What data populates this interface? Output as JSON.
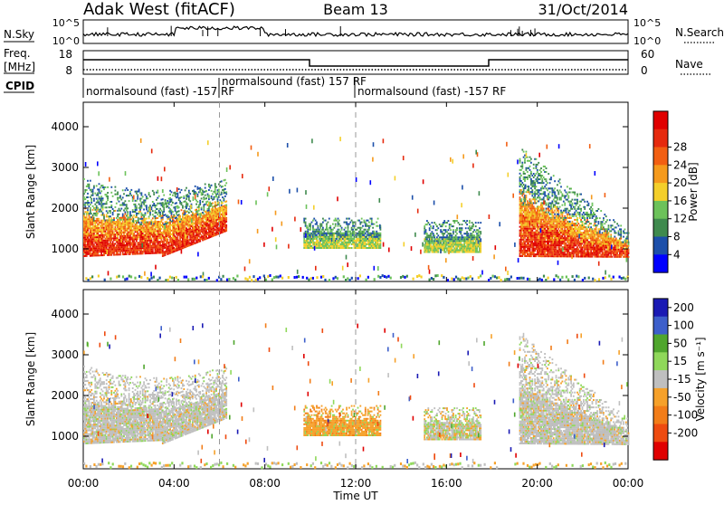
{
  "header": {
    "station": "Adak West (fitACF)",
    "beam": "Beam 13",
    "date": "31/Oct/2014"
  },
  "left_labels": {
    "nsky": "N.Sky",
    "freq_line1": "Freq.",
    "freq_line2": "[MHz]",
    "cpid": "CPID"
  },
  "right_labels": {
    "nsearch": "N.Search",
    "nave": "Nave"
  },
  "noise_ticks": {
    "top": "10^5",
    "bottom": "10^0"
  },
  "freq_ticks": {
    "top": "18",
    "bottom": "8"
  },
  "nave_ticks": {
    "top": "60",
    "bottom": "0"
  },
  "cpid_segments": [
    {
      "label": "normalsound (fast) -157 RF",
      "start": "00:00",
      "end": "06:00"
    },
    {
      "label": "normalsound (fast) 157 RF",
      "start": "06:00",
      "end": "12:00"
    },
    {
      "label": "normalsound (fast) -157 RF",
      "start": "12:00",
      "end": "24:00"
    }
  ],
  "colors": {
    "power_scale": [
      "#0000ff",
      "#1c4faa",
      "#3f8a4e",
      "#6cc25a",
      "#f4cf2a",
      "#f59a1c",
      "#f25f12",
      "#e62a0e",
      "#e00000"
    ],
    "velocity_scale": [
      "#1a1ab4",
      "#3d5fcb",
      "#4fa62d",
      "#8fd85a",
      "#bfbfbf",
      "#f6a12a",
      "#f27d19",
      "#ee4b10",
      "#e00000"
    ]
  },
  "chart_data": [
    {
      "type": "heatmap",
      "title": "Power",
      "xlabel": "",
      "ylabel": "Slant Range [km]",
      "x_ticks": [
        "00:00",
        "04:00",
        "08:00",
        "12:00",
        "16:00",
        "20:00",
        "00:00"
      ],
      "y_ticks": [
        "1000",
        "2000",
        "3000",
        "4000"
      ],
      "ylim": [
        200,
        4600
      ],
      "colorbar_label": "Power [dB]",
      "colorbar_ticks": [
        "4",
        "8",
        "12",
        "16",
        "20",
        "24",
        "28"
      ],
      "colorbar_range": [
        0,
        30
      ],
      "echo_regions": [
        {
          "name": "morning",
          "t_start": 0.0,
          "t_end": 6.3,
          "r_min": 800,
          "r_max": 2700,
          "level": "high"
        },
        {
          "name": "mid1",
          "t_start": 9.7,
          "t_end": 13.1,
          "r_min": 1000,
          "r_max": 1750,
          "level": "medium"
        },
        {
          "name": "mid2",
          "t_start": 15.0,
          "t_end": 17.5,
          "r_min": 900,
          "r_max": 1700,
          "level": "medium"
        },
        {
          "name": "evening",
          "t_start": 19.2,
          "t_end": 24.0,
          "r_min": 800,
          "r_max": 3500,
          "level": "high"
        }
      ]
    },
    {
      "type": "heatmap",
      "title": "Velocity",
      "xlabel": "Time UT",
      "ylabel": "Slant Range [km]",
      "x_ticks": [
        "00:00",
        "04:00",
        "08:00",
        "12:00",
        "16:00",
        "20:00",
        "00:00"
      ],
      "y_ticks": [
        "1000",
        "2000",
        "3000",
        "4000"
      ],
      "ylim": [
        200,
        4600
      ],
      "colorbar_label": "Velocity [m s⁻¹]",
      "colorbar_ticks": [
        "200",
        "100",
        "50",
        "15",
        "-15",
        "-50",
        "-100",
        "-200"
      ],
      "colorbar_range": [
        -250,
        250
      ],
      "echo_regions": [
        {
          "name": "morning",
          "t_start": 0.0,
          "t_end": 6.3,
          "r_min": 800,
          "r_max": 2700,
          "level": "ground"
        },
        {
          "name": "mid1",
          "t_start": 9.7,
          "t_end": 13.1,
          "r_min": 1000,
          "r_max": 1750,
          "level": "negative"
        },
        {
          "name": "mid2",
          "t_start": 15.0,
          "t_end": 17.5,
          "r_min": 900,
          "r_max": 1700,
          "level": "mixed"
        },
        {
          "name": "evening",
          "t_start": 19.2,
          "t_end": 24.0,
          "r_min": 800,
          "r_max": 3500,
          "level": "ground"
        }
      ]
    }
  ]
}
